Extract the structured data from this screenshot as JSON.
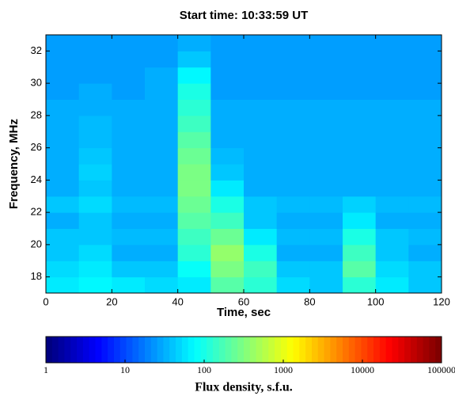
{
  "chart_data": {
    "type": "spectrogram",
    "title": "Start time: 10:33:59 UT",
    "x_label": "Time, sec",
    "y_label": "Frequency, MHz",
    "colorbar_label": "Flux density, s.f.u.",
    "colormap": "jet",
    "color_scale": "log",
    "xbins": [
      0,
      10,
      20,
      30,
      40,
      50,
      60,
      70,
      80,
      90,
      100,
      110,
      120
    ],
    "ybins": [
      17,
      18,
      19,
      20,
      21,
      22,
      23,
      24,
      25,
      26,
      27,
      28,
      29,
      30,
      31,
      32,
      33
    ],
    "values": [
      [
        60,
        70,
        60,
        50,
        60,
        200,
        120,
        50,
        40,
        120,
        60,
        40
      ],
      [
        50,
        60,
        40,
        40,
        80,
        300,
        150,
        40,
        40,
        200,
        50,
        40
      ],
      [
        40,
        50,
        30,
        30,
        120,
        400,
        100,
        30,
        30,
        150,
        40,
        30
      ],
      [
        40,
        40,
        35,
        35,
        150,
        250,
        60,
        35,
        35,
        100,
        40,
        35
      ],
      [
        30,
        40,
        30,
        30,
        200,
        150,
        40,
        30,
        30,
        60,
        30,
        30
      ],
      [
        40,
        50,
        35,
        35,
        250,
        100,
        40,
        35,
        35,
        45,
        35,
        35
      ],
      [
        30,
        40,
        30,
        30,
        300,
        60,
        30,
        30,
        30,
        30,
        30,
        30
      ],
      [
        30,
        45,
        30,
        30,
        300,
        40,
        30,
        30,
        30,
        30,
        30,
        30
      ],
      [
        30,
        40,
        30,
        30,
        250,
        35,
        30,
        30,
        30,
        30,
        30,
        30
      ],
      [
        30,
        35,
        30,
        30,
        200,
        30,
        30,
        30,
        30,
        30,
        30,
        30
      ],
      [
        30,
        35,
        30,
        30,
        150,
        30,
        30,
        30,
        30,
        30,
        30,
        30
      ],
      [
        30,
        30,
        30,
        30,
        120,
        30,
        30,
        30,
        30,
        30,
        30,
        30
      ],
      [
        25,
        30,
        25,
        30,
        100,
        25,
        25,
        25,
        25,
        25,
        25,
        25
      ],
      [
        25,
        25,
        25,
        30,
        70,
        25,
        25,
        25,
        25,
        25,
        25,
        25
      ],
      [
        25,
        25,
        25,
        25,
        40,
        25,
        25,
        25,
        25,
        25,
        25,
        25
      ],
      [
        25,
        25,
        25,
        25,
        30,
        25,
        25,
        25,
        25,
        25,
        25,
        25
      ]
    ],
    "xlim": [
      0,
      120
    ],
    "xticks": [
      0,
      20,
      40,
      60,
      80,
      100,
      120
    ],
    "ylim": [
      17,
      33
    ],
    "yticks": [
      18,
      20,
      22,
      24,
      26,
      28,
      30,
      32
    ],
    "clim": [
      1,
      100000
    ],
    "cticks": [
      1,
      10,
      100,
      1000,
      10000,
      100000
    ]
  }
}
